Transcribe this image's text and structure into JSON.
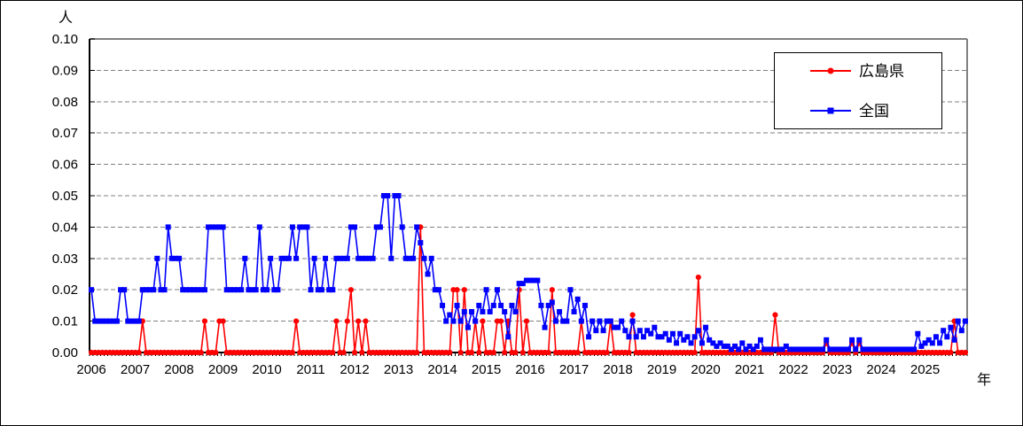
{
  "chart_data": {
    "type": "line",
    "title": "",
    "y_unit_label": "人",
    "x_unit_label": "年",
    "ylim": [
      0,
      0.1
    ],
    "y_tick_step": 0.01,
    "grid": "horizontal-dashed",
    "legend_position": "top-right",
    "x_frequency": "monthly",
    "x_start_year": 2006,
    "y_ticks": [
      "0.00",
      "0.01",
      "0.02",
      "0.03",
      "0.04",
      "0.05",
      "0.06",
      "0.07",
      "0.08",
      "0.09",
      "0.10"
    ],
    "year_labels": [
      "2006",
      "2007",
      "2008",
      "2009",
      "2010",
      "2011",
      "2012",
      "2013",
      "2014",
      "2015",
      "2016",
      "2017",
      "2018",
      "2019",
      "2020",
      "2021",
      "2022",
      "2023",
      "2024",
      "2025"
    ],
    "series": [
      {
        "name": "広島県",
        "color": "#FF0000",
        "marker": "circle",
        "values": [
          0,
          0,
          0,
          0,
          0,
          0,
          0,
          0,
          0,
          0,
          0,
          0,
          0,
          0,
          0.01,
          0,
          0,
          0,
          0,
          0,
          0,
          0,
          0,
          0,
          0,
          0,
          0,
          0,
          0,
          0,
          0,
          0.01,
          0,
          0,
          0,
          0.01,
          0.01,
          0,
          0,
          0,
          0,
          0,
          0,
          0,
          0,
          0,
          0,
          0,
          0,
          0,
          0,
          0,
          0,
          0,
          0,
          0,
          0.01,
          0,
          0,
          0,
          0,
          0,
          0,
          0,
          0,
          0,
          0,
          0.01,
          0,
          0,
          0.01,
          0.02,
          0,
          0.01,
          0,
          0.01,
          0,
          0,
          0,
          0,
          0,
          0,
          0,
          0,
          0,
          0,
          0,
          0,
          0,
          0,
          0.04,
          0,
          0,
          0,
          0,
          0,
          0,
          0,
          0,
          0.02,
          0.02,
          0,
          0.02,
          0,
          0,
          0.01,
          0,
          0.01,
          0,
          0,
          0,
          0.01,
          0.01,
          0,
          0.01,
          0,
          0,
          0.02,
          0,
          0.01,
          0,
          0,
          0,
          0,
          0,
          0,
          0.02,
          0,
          0,
          0,
          0,
          0,
          0,
          0,
          0.01,
          0,
          0,
          0,
          0,
          0,
          0,
          0,
          0.01,
          0,
          0,
          0,
          0,
          0,
          0.012,
          0,
          0,
          0,
          0,
          0,
          0,
          0,
          0,
          0,
          0,
          0,
          0,
          0,
          0,
          0,
          0,
          0,
          0.024,
          0,
          0,
          0,
          0,
          0,
          0,
          0,
          0,
          0,
          0,
          0,
          0,
          0,
          0,
          0,
          0,
          0,
          0,
          0,
          0,
          0.012,
          0,
          0,
          0,
          0,
          0,
          0,
          0,
          0,
          0,
          0,
          0,
          0,
          0,
          0.003,
          0,
          0,
          0,
          0,
          0,
          0,
          0.003,
          0,
          0.003,
          0,
          0,
          0,
          0,
          0,
          0,
          0,
          0,
          0,
          0,
          0,
          0,
          0,
          0,
          0,
          0,
          0,
          0,
          0,
          0,
          0,
          0,
          0,
          0,
          0,
          0.01,
          0,
          0,
          0
        ]
      },
      {
        "name": "全国",
        "color": "#0000FF",
        "marker": "square",
        "values": [
          0.02,
          0.01,
          0.01,
          0.01,
          0.01,
          0.01,
          0.01,
          0.01,
          0.02,
          0.02,
          0.01,
          0.01,
          0.01,
          0.01,
          0.02,
          0.02,
          0.02,
          0.02,
          0.03,
          0.02,
          0.02,
          0.04,
          0.03,
          0.03,
          0.03,
          0.02,
          0.02,
          0.02,
          0.02,
          0.02,
          0.02,
          0.02,
          0.04,
          0.04,
          0.04,
          0.04,
          0.04,
          0.02,
          0.02,
          0.02,
          0.02,
          0.02,
          0.03,
          0.02,
          0.02,
          0.02,
          0.04,
          0.02,
          0.02,
          0.03,
          0.02,
          0.02,
          0.03,
          0.03,
          0.03,
          0.04,
          0.03,
          0.04,
          0.04,
          0.04,
          0.02,
          0.03,
          0.02,
          0.02,
          0.03,
          0.02,
          0.02,
          0.03,
          0.03,
          0.03,
          0.03,
          0.04,
          0.04,
          0.03,
          0.03,
          0.03,
          0.03,
          0.03,
          0.04,
          0.04,
          0.05,
          0.05,
          0.03,
          0.05,
          0.05,
          0.04,
          0.03,
          0.03,
          0.03,
          0.04,
          0.035,
          0.03,
          0.025,
          0.03,
          0.02,
          0.02,
          0.015,
          0.01,
          0.012,
          0.01,
          0.015,
          0.01,
          0.013,
          0.008,
          0.013,
          0.01,
          0.015,
          0.013,
          0.02,
          0.013,
          0.015,
          0.02,
          0.015,
          0.013,
          0.005,
          0.015,
          0.013,
          0.022,
          0.022,
          0.023,
          0.023,
          0.023,
          0.023,
          0.015,
          0.008,
          0.015,
          0.016,
          0.01,
          0.013,
          0.01,
          0.01,
          0.02,
          0.013,
          0.017,
          0.01,
          0.015,
          0.005,
          0.01,
          0.007,
          0.01,
          0.007,
          0.01,
          0.01,
          0.008,
          0.008,
          0.01,
          0.007,
          0.005,
          0.01,
          0.005,
          0.007,
          0.005,
          0.007,
          0.006,
          0.008,
          0.005,
          0.005,
          0.006,
          0.004,
          0.006,
          0.003,
          0.006,
          0.004,
          0.005,
          0.003,
          0.005,
          0.007,
          0.003,
          0.008,
          0.004,
          0.003,
          0.002,
          0.003,
          0.002,
          0.002,
          0.001,
          0.002,
          0.001,
          0.003,
          0.001,
          0.002,
          0.001,
          0.002,
          0.004,
          0.001,
          0.001,
          0.001,
          0.001,
          0.001,
          0.001,
          0.002,
          0.001,
          0.001,
          0.001,
          0.001,
          0.001,
          0.001,
          0.001,
          0.001,
          0.001,
          0.001,
          0.004,
          0.001,
          0.001,
          0.001,
          0.001,
          0.001,
          0.001,
          0.004,
          0.001,
          0.004,
          0.001,
          0.001,
          0.001,
          0.001,
          0.001,
          0.001,
          0.001,
          0.001,
          0.001,
          0.001,
          0.001,
          0.001,
          0.001,
          0.001,
          0.001,
          0.006,
          0.002,
          0.003,
          0.004,
          0.003,
          0.005,
          0.003,
          0.007,
          0.005,
          0.008,
          0.004,
          0.01,
          0.007,
          0.01
        ]
      }
    ],
    "colors": {
      "grid": "#808080",
      "frame_top_right": "#808080",
      "axis": "#000000",
      "text": "#000000",
      "background": "#FFFFFF"
    }
  }
}
